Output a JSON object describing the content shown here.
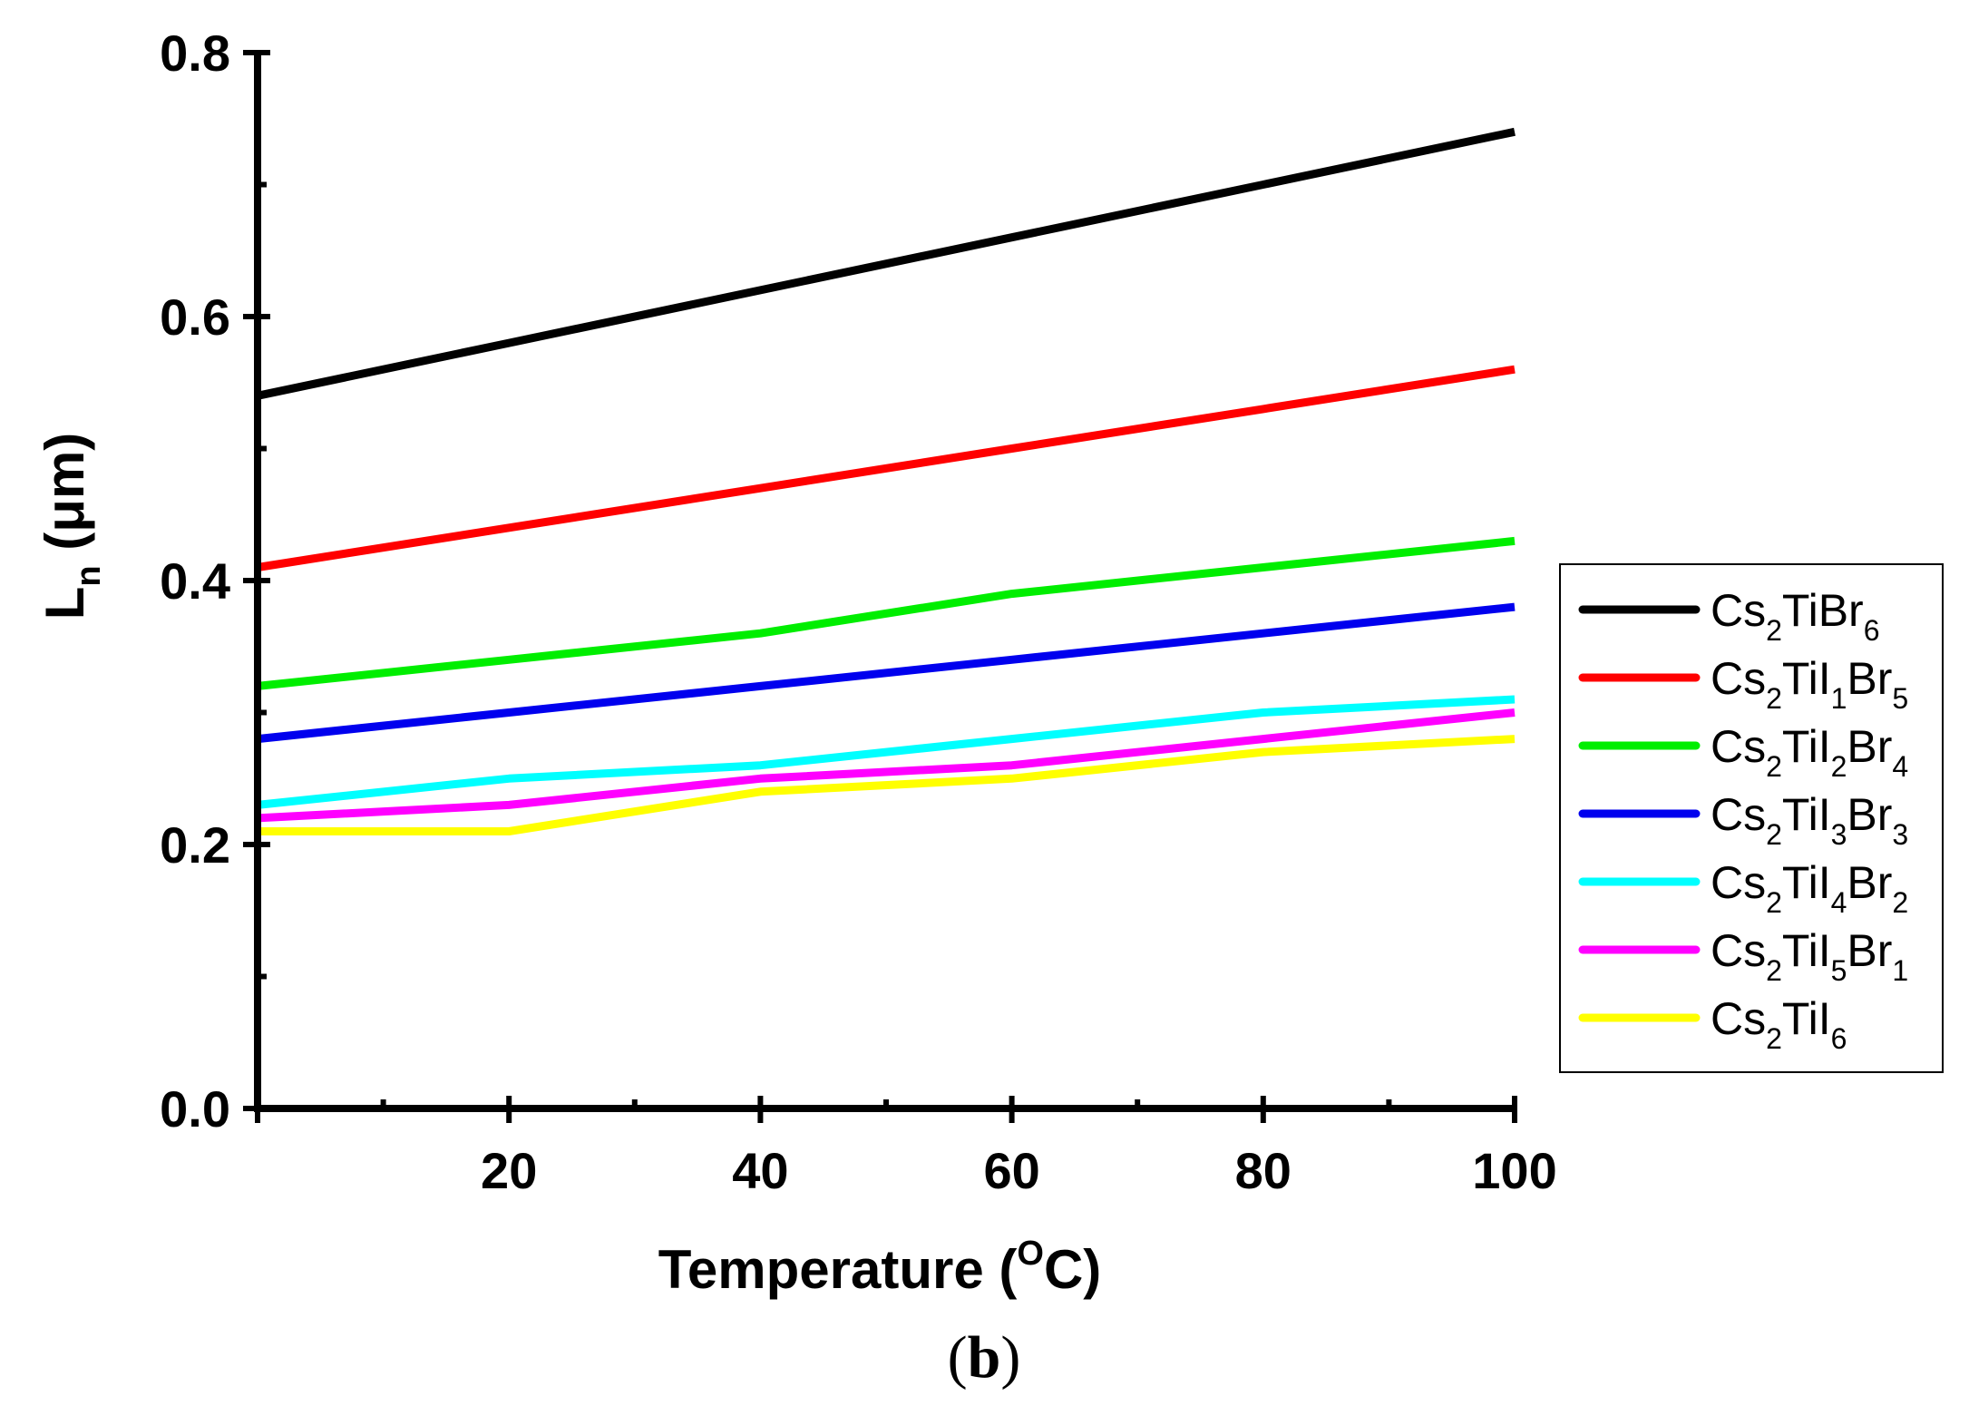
{
  "chart_data": {
    "type": "line",
    "title": "",
    "xlabel": {
      "base": "Temperature (",
      "sup": "O",
      "tail": "C)"
    },
    "ylabel": {
      "base": "L",
      "sub": "n",
      "tail": " (μm)"
    },
    "xlim": [
      0,
      100
    ],
    "ylim": [
      0,
      0.8
    ],
    "x_ticks": [
      20,
      40,
      60,
      80,
      100
    ],
    "x_tick_labels": [
      "20",
      "40",
      "60",
      "80",
      "100"
    ],
    "y_ticks": [
      0.0,
      0.2,
      0.4,
      0.6,
      0.8
    ],
    "y_tick_labels": [
      "0.0",
      "0.2",
      "0.4",
      "0.6",
      "0.8"
    ],
    "grid": false,
    "legend_position": "right",
    "x": [
      0,
      20,
      40,
      60,
      80,
      100
    ],
    "series": [
      {
        "name": "Cs2TiBr6",
        "label_parts": [
          [
            "Cs",
            ""
          ],
          [
            "2",
            "sub"
          ],
          [
            "TiBr",
            ""
          ],
          [
            "6",
            "sub"
          ]
        ],
        "color": "#000000",
        "values": [
          0.54,
          0.58,
          0.62,
          0.66,
          0.7,
          0.74
        ]
      },
      {
        "name": "Cs2TiI1Br5",
        "label_parts": [
          [
            "Cs",
            ""
          ],
          [
            "2",
            "sub"
          ],
          [
            "TiI",
            ""
          ],
          [
            "1",
            "sub"
          ],
          [
            "Br",
            ""
          ],
          [
            "5",
            "sub"
          ]
        ],
        "color": "#ff0000",
        "values": [
          0.41,
          0.44,
          0.47,
          0.5,
          0.53,
          0.56
        ]
      },
      {
        "name": "Cs2TiI2Br4",
        "label_parts": [
          [
            "Cs",
            ""
          ],
          [
            "2",
            "sub"
          ],
          [
            "TiI",
            ""
          ],
          [
            "2",
            "sub"
          ],
          [
            "Br",
            ""
          ],
          [
            "4",
            "sub"
          ]
        ],
        "color": "#00ee00",
        "values": [
          0.32,
          0.34,
          0.36,
          0.39,
          0.41,
          0.43
        ]
      },
      {
        "name": "Cs2TiI3Br3",
        "label_parts": [
          [
            "Cs",
            ""
          ],
          [
            "2",
            "sub"
          ],
          [
            "TiI",
            ""
          ],
          [
            "3",
            "sub"
          ],
          [
            "Br",
            ""
          ],
          [
            "3",
            "sub"
          ]
        ],
        "color": "#0000ee",
        "values": [
          0.28,
          0.3,
          0.32,
          0.34,
          0.36,
          0.38
        ]
      },
      {
        "name": "Cs2TiI4Br2",
        "label_parts": [
          [
            "Cs",
            ""
          ],
          [
            "2",
            "sub"
          ],
          [
            "TiI",
            ""
          ],
          [
            "4",
            "sub"
          ],
          [
            "Br",
            ""
          ],
          [
            "2",
            "sub"
          ]
        ],
        "color": "#00ffff",
        "values": [
          0.23,
          0.25,
          0.26,
          0.28,
          0.3,
          0.31
        ]
      },
      {
        "name": "Cs2TiI5Br1",
        "label_parts": [
          [
            "Cs",
            ""
          ],
          [
            "2",
            "sub"
          ],
          [
            "TiI",
            ""
          ],
          [
            "5",
            "sub"
          ],
          [
            "Br",
            ""
          ],
          [
            "1",
            "sub"
          ]
        ],
        "color": "#ff00ff",
        "values": [
          0.22,
          0.23,
          0.25,
          0.26,
          0.28,
          0.3
        ]
      },
      {
        "name": "Cs2TiI6",
        "label_parts": [
          [
            "Cs",
            ""
          ],
          [
            "2",
            "sub"
          ],
          [
            "TiI",
            ""
          ],
          [
            "6",
            "sub"
          ]
        ],
        "color": "#ffff00",
        "values": [
          0.21,
          0.21,
          0.24,
          0.25,
          0.27,
          0.28
        ]
      }
    ]
  },
  "caption": {
    "open": "(",
    "letter": "b",
    "close": ")"
  }
}
